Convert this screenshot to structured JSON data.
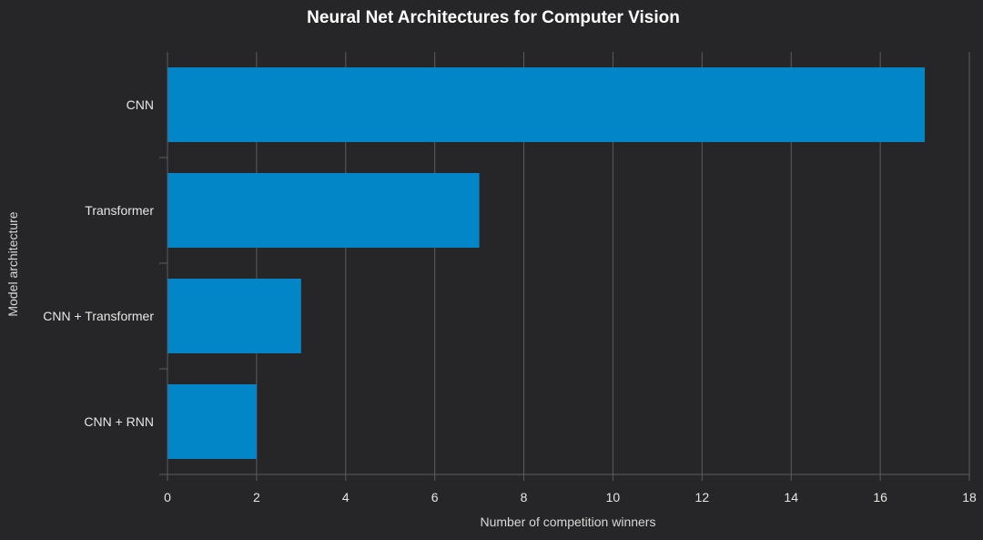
{
  "chart_data": {
    "type": "bar",
    "orientation": "horizontal",
    "title": "Neural Net Architectures for Computer Vision",
    "xlabel": "Number of competition winners",
    "ylabel": "Model architecture",
    "categories": [
      "CNN",
      "Transformer",
      "CNN + Transformer",
      "CNN + RNN"
    ],
    "values": [
      17,
      7,
      3,
      2
    ],
    "xlim": [
      0,
      18
    ],
    "xticks": [
      0,
      2,
      4,
      6,
      8,
      10,
      12,
      14,
      16,
      18
    ],
    "grid": true,
    "colors": {
      "bar": "#0286C8",
      "background": "#262628",
      "grid": "#5a5d63",
      "text": "#e6e6e6"
    }
  }
}
